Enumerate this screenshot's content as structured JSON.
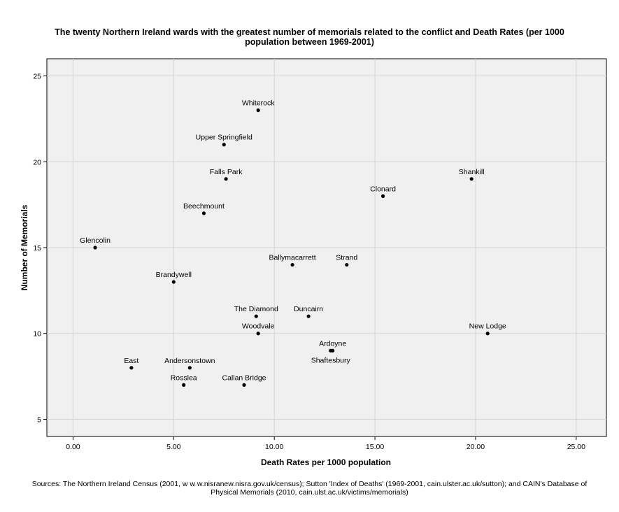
{
  "chart_data": {
    "type": "scatter",
    "title": [
      "The twenty Northern Ireland wards with the greatest number of memorials related to the conflict and Death Rates (per 1000",
      "population between 1969-2001)"
    ],
    "xlabel": "Death Rates per 1000 population",
    "ylabel": "Number of Memorials",
    "xlim": [
      -1.3,
      26.5
    ],
    "ylim": [
      4,
      26
    ],
    "xticks": [
      0,
      5,
      10,
      15,
      20,
      25
    ],
    "xtick_labels": [
      "0.00",
      "5.00",
      "10.00",
      "15.00",
      "20.00",
      "25.00"
    ],
    "yticks": [
      5,
      10,
      15,
      20,
      25
    ],
    "ytick_labels": [
      "5",
      "10",
      "15",
      "20",
      "25"
    ],
    "grid": true,
    "points": [
      {
        "label": "Whiterock",
        "x": 9.2,
        "y": 23,
        "label_pos": "above"
      },
      {
        "label": "Upper Springfield",
        "x": 7.5,
        "y": 21,
        "label_pos": "above"
      },
      {
        "label": "Falls Park",
        "x": 7.6,
        "y": 19,
        "label_pos": "above"
      },
      {
        "label": "Shankill",
        "x": 19.8,
        "y": 19,
        "label_pos": "above"
      },
      {
        "label": "Clonard",
        "x": 15.4,
        "y": 18,
        "label_pos": "above"
      },
      {
        "label": "Beechmount",
        "x": 6.5,
        "y": 17,
        "label_pos": "above"
      },
      {
        "label": "Glencolin",
        "x": 1.1,
        "y": 15,
        "label_pos": "above"
      },
      {
        "label": "Ballymacarrett",
        "x": 10.9,
        "y": 14,
        "label_pos": "above"
      },
      {
        "label": "Strand",
        "x": 13.6,
        "y": 14,
        "label_pos": "above"
      },
      {
        "label": "Brandywell",
        "x": 5.0,
        "y": 13,
        "label_pos": "above"
      },
      {
        "label": "The Diamond",
        "x": 9.1,
        "y": 11,
        "label_pos": "above"
      },
      {
        "label": "Duncairn",
        "x": 11.7,
        "y": 11,
        "label_pos": "above"
      },
      {
        "label": "Woodvale",
        "x": 9.2,
        "y": 10,
        "label_pos": "above"
      },
      {
        "label": "New Lodge",
        "x": 20.6,
        "y": 10,
        "label_pos": "above"
      },
      {
        "label": "Ardoyne",
        "x": 12.9,
        "y": 9,
        "label_pos": "above"
      },
      {
        "label": "Shaftesbury",
        "x": 12.8,
        "y": 9,
        "label_pos": "below"
      },
      {
        "label": "East",
        "x": 2.9,
        "y": 8,
        "label_pos": "above"
      },
      {
        "label": "Andersonstown",
        "x": 5.8,
        "y": 8,
        "label_pos": "above"
      },
      {
        "label": "Rosslea",
        "x": 5.5,
        "y": 7,
        "label_pos": "above"
      },
      {
        "label": "Callan Bridge",
        "x": 8.5,
        "y": 7,
        "label_pos": "above"
      }
    ],
    "colors": {
      "plot_background": "#f0f0f0",
      "grid": "#d4d4d4",
      "marker": "#000000"
    }
  },
  "footer": [
    "Sources: The Northern Ireland Census (2001, w w w.nisranew.nisra.gov.uk/census); Sutton 'Index of Deaths' (1969-2001, cain.ulster.ac.uk/sutton); and CAIN's Database of",
    "Physical Memorials (2010, cain.ulst.ac.uk/victims/memorials)"
  ]
}
